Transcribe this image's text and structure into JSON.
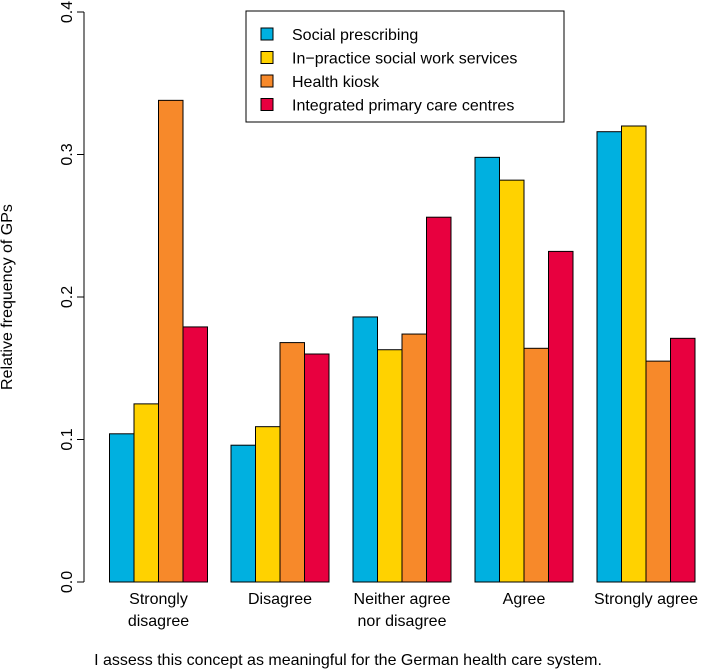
{
  "chart_data": {
    "type": "bar",
    "title": "",
    "xlabel": "I assess this concept as meaningful for the German health care system.",
    "ylabel": "Relative frequency of GPs",
    "ylim": [
      0,
      0.4
    ],
    "yticks": [
      "0.0",
      "0.1",
      "0.2",
      "0.3",
      "0.4"
    ],
    "categories": [
      [
        "Strongly",
        "disagree"
      ],
      [
        "Disagree"
      ],
      [
        "Neither agree",
        "nor disagree"
      ],
      [
        "Agree"
      ],
      [
        "Strongly agree"
      ]
    ],
    "series": [
      {
        "name": "Social prescribing",
        "color": "#00B0E0",
        "values": [
          0.104,
          0.096,
          0.186,
          0.298,
          0.316
        ]
      },
      {
        "name": "In−practice social work services",
        "color": "#FFD200",
        "values": [
          0.125,
          0.109,
          0.163,
          0.282,
          0.32
        ]
      },
      {
        "name": "Health kiosk",
        "color": "#F7892A",
        "values": [
          0.338,
          0.168,
          0.174,
          0.164,
          0.155
        ]
      },
      {
        "name": "Integrated primary care centres",
        "color": "#E8003F",
        "values": [
          0.179,
          0.16,
          0.256,
          0.232,
          0.171
        ]
      }
    ],
    "legend_position": "top-center",
    "grid": false
  }
}
